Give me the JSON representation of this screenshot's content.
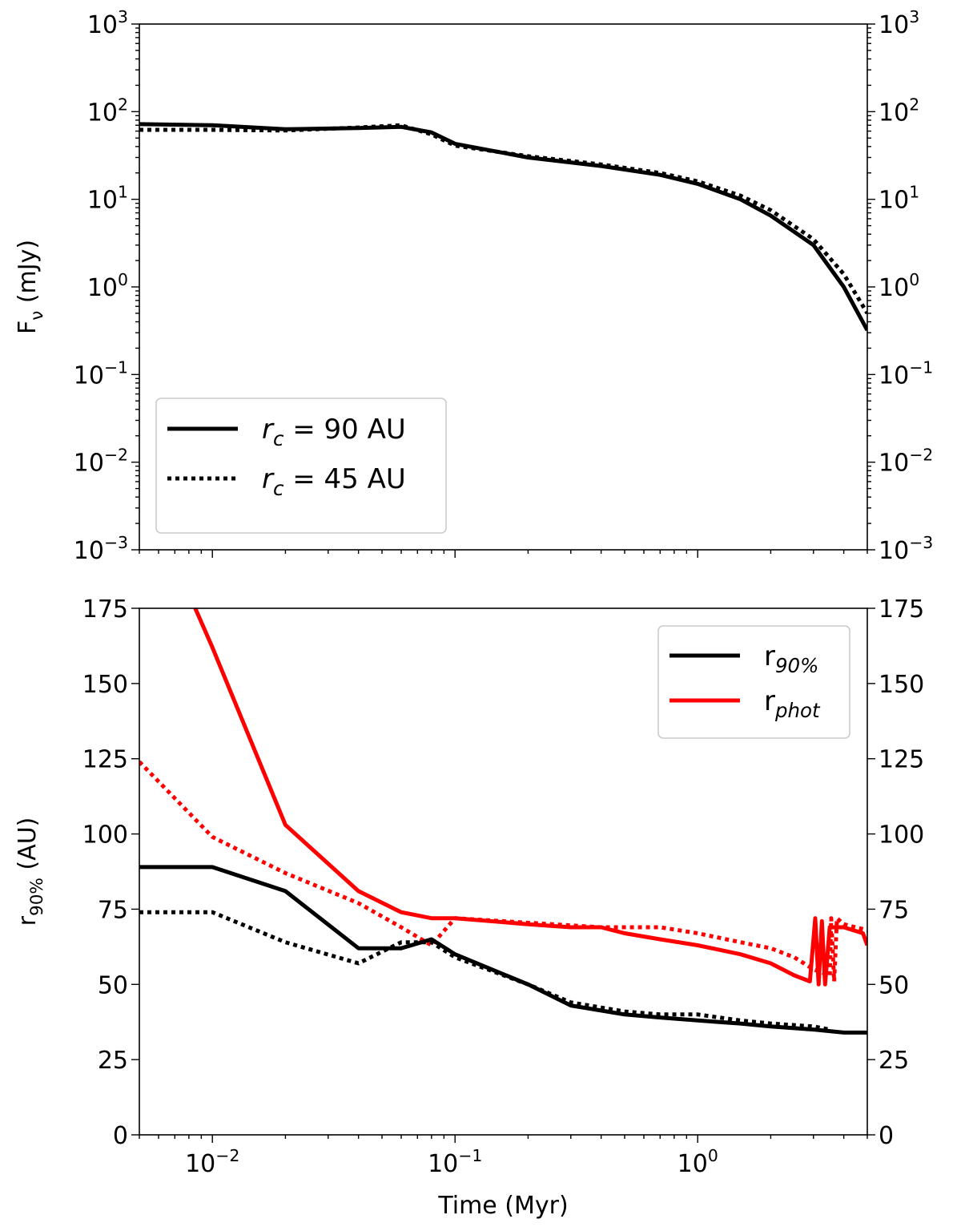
{
  "chart_data": [
    {
      "type": "line",
      "xscale": "log",
      "yscale": "log",
      "xlim": [
        0.005,
        5
      ],
      "ylim": [
        0.001,
        1000
      ],
      "xlabel": "",
      "ylabel": {
        "main": "F",
        "sub": "ν",
        "rest": " (mJy)"
      },
      "x_ticks": [
        {
          "v": 0.01,
          "base": "10",
          "exp": "−2"
        },
        {
          "v": 0.1,
          "base": "10",
          "exp": "−1"
        },
        {
          "v": 1,
          "base": "10",
          "exp": "0"
        }
      ],
      "y_ticks": [
        {
          "v": 1000,
          "base": "10",
          "exp": "3"
        },
        {
          "v": 100,
          "base": "10",
          "exp": "2"
        },
        {
          "v": 10,
          "base": "10",
          "exp": "1"
        },
        {
          "v": 1,
          "base": "10",
          "exp": "0"
        },
        {
          "v": 0.1,
          "base": "10",
          "exp": "−1"
        },
        {
          "v": 0.01,
          "base": "10",
          "exp": "−2"
        },
        {
          "v": 0.001,
          "base": "10",
          "exp": "−3"
        }
      ],
      "legend": {
        "position": "lower-left",
        "entries": [
          {
            "style": "solid",
            "text_main": "r",
            "text_sub": "c",
            "text_rest": " = 90 AU"
          },
          {
            "style": "dotted",
            "text_main": "r",
            "text_sub": "c",
            "text_rest": " = 45 AU"
          }
        ]
      },
      "series": [
        {
          "color": "#000000",
          "style": "solid",
          "points": [
            [
              0.005,
              72
            ],
            [
              0.01,
              70
            ],
            [
              0.02,
              63
            ],
            [
              0.04,
              65
            ],
            [
              0.06,
              67
            ],
            [
              0.08,
              58
            ],
            [
              0.1,
              43
            ],
            [
              0.2,
              30
            ],
            [
              0.4,
              24
            ],
            [
              0.7,
              19
            ],
            [
              1.0,
              15
            ],
            [
              1.5,
              10
            ],
            [
              2.0,
              6.5
            ],
            [
              3.0,
              3.0
            ],
            [
              4.0,
              1.0
            ],
            [
              5.0,
              0.32
            ]
          ]
        },
        {
          "color": "#000000",
          "style": "dotted",
          "points": [
            [
              0.005,
              62
            ],
            [
              0.01,
              62
            ],
            [
              0.02,
              61
            ],
            [
              0.04,
              66
            ],
            [
              0.06,
              70
            ],
            [
              0.08,
              55
            ],
            [
              0.1,
              41
            ],
            [
              0.2,
              31
            ],
            [
              0.4,
              25
            ],
            [
              0.7,
              20
            ],
            [
              1.0,
              16
            ],
            [
              1.5,
              11
            ],
            [
              2.0,
              7.5
            ],
            [
              3.0,
              3.5
            ],
            [
              4.0,
              1.4
            ],
            [
              5.0,
              0.5
            ]
          ]
        }
      ]
    },
    {
      "type": "line",
      "xscale": "log",
      "yscale": "linear",
      "xlim": [
        0.005,
        5
      ],
      "ylim": [
        0,
        175
      ],
      "xlabel": "Time (Myr)",
      "ylabel": {
        "main": "r",
        "sub": "90%",
        "rest": " (AU)"
      },
      "x_ticks": [
        {
          "v": 0.01,
          "base": "10",
          "exp": "−2"
        },
        {
          "v": 0.1,
          "base": "10",
          "exp": "−1"
        },
        {
          "v": 1,
          "base": "10",
          "exp": "0"
        }
      ],
      "y_ticks": [
        {
          "v": 0,
          "label": "0"
        },
        {
          "v": 25,
          "label": "25"
        },
        {
          "v": 50,
          "label": "50"
        },
        {
          "v": 75,
          "label": "75"
        },
        {
          "v": 100,
          "label": "100"
        },
        {
          "v": 125,
          "label": "125"
        },
        {
          "v": 150,
          "label": "150"
        },
        {
          "v": 175,
          "label": "175"
        }
      ],
      "legend": {
        "position": "upper-right",
        "entries": [
          {
            "style": "solid",
            "color": "#000000",
            "text_main": "r",
            "text_sub": "90%",
            "text_rest": ""
          },
          {
            "style": "solid",
            "color": "#ff0000",
            "text_main": "r",
            "text_sub": "phot",
            "text_rest": ""
          }
        ]
      },
      "series": [
        {
          "color": "#ff0000",
          "style": "solid",
          "points": [
            [
              0.0085,
              175
            ],
            [
              0.01,
              162
            ],
            [
              0.02,
              103
            ],
            [
              0.04,
              81
            ],
            [
              0.06,
              74
            ],
            [
              0.08,
              72
            ],
            [
              0.1,
              72
            ],
            [
              0.2,
              70
            ],
            [
              0.3,
              69
            ],
            [
              0.4,
              69
            ],
            [
              0.5,
              67
            ],
            [
              0.7,
              65
            ],
            [
              1.0,
              63
            ],
            [
              1.5,
              60
            ],
            [
              2.0,
              57
            ],
            [
              2.5,
              53
            ],
            [
              2.9,
              51
            ],
            [
              3.05,
              72
            ],
            [
              3.15,
              50
            ],
            [
              3.25,
              71
            ],
            [
              3.35,
              50
            ],
            [
              3.5,
              69
            ],
            [
              4.0,
              69
            ],
            [
              4.8,
              67
            ],
            [
              5.0,
              63
            ]
          ]
        },
        {
          "color": "#ff0000",
          "style": "dotted",
          "points": [
            [
              0.005,
              124
            ],
            [
              0.01,
              99
            ],
            [
              0.02,
              87
            ],
            [
              0.04,
              77
            ],
            [
              0.06,
              69
            ],
            [
              0.08,
              63
            ],
            [
              0.1,
              72
            ],
            [
              0.4,
              69
            ],
            [
              0.7,
              69
            ],
            [
              1.0,
              67
            ],
            [
              1.5,
              64
            ],
            [
              2.0,
              62
            ],
            [
              2.5,
              59
            ],
            [
              3.0,
              55
            ],
            [
              3.5,
              53
            ],
            [
              3.55,
              72
            ],
            [
              3.65,
              51
            ],
            [
              3.75,
              72
            ],
            [
              4.0,
              70
            ],
            [
              5.0,
              68
            ]
          ]
        },
        {
          "color": "#000000",
          "style": "solid",
          "points": [
            [
              0.005,
              89
            ],
            [
              0.01,
              89
            ],
            [
              0.02,
              81
            ],
            [
              0.04,
              62
            ],
            [
              0.06,
              62
            ],
            [
              0.08,
              65
            ],
            [
              0.1,
              60
            ],
            [
              0.2,
              50
            ],
            [
              0.3,
              43
            ],
            [
              0.5,
              40
            ],
            [
              0.7,
              39
            ],
            [
              1.0,
              38
            ],
            [
              1.5,
              37
            ],
            [
              2.0,
              36
            ],
            [
              3.0,
              35
            ],
            [
              4.0,
              34
            ],
            [
              5.0,
              34
            ]
          ]
        },
        {
          "color": "#000000",
          "style": "dotted",
          "points": [
            [
              0.005,
              74
            ],
            [
              0.01,
              74
            ],
            [
              0.02,
              64
            ],
            [
              0.04,
              57
            ],
            [
              0.06,
              64
            ],
            [
              0.08,
              64
            ],
            [
              0.1,
              59
            ],
            [
              0.2,
              50
            ],
            [
              0.3,
              44
            ],
            [
              0.5,
              41
            ],
            [
              0.7,
              40
            ],
            [
              1.0,
              40
            ],
            [
              1.5,
              38
            ],
            [
              2.0,
              37
            ],
            [
              3.0,
              36
            ],
            [
              3.5,
              35
            ]
          ]
        }
      ]
    }
  ]
}
